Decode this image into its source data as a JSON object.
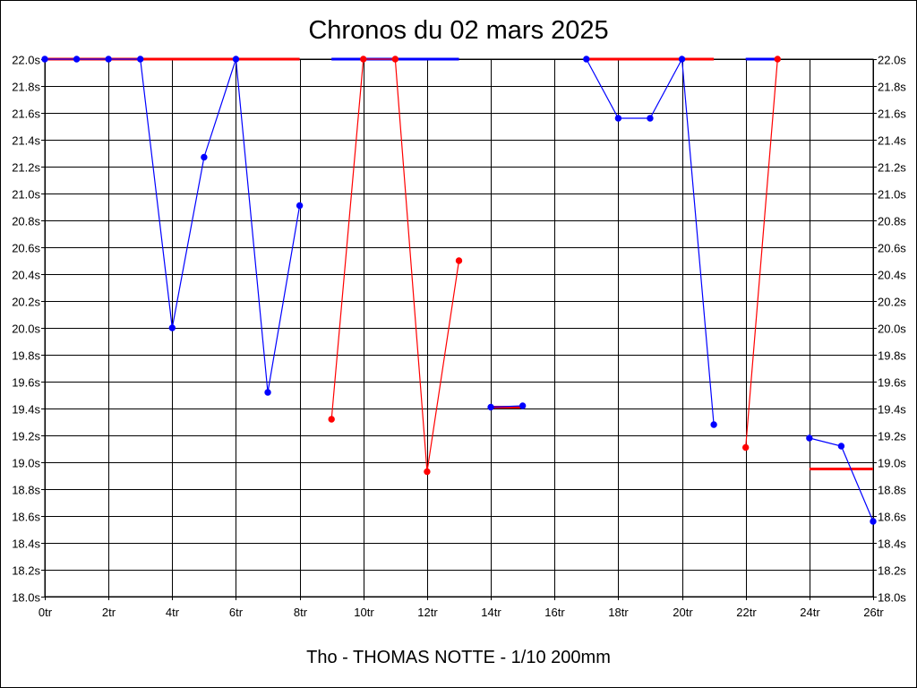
{
  "chart_data": {
    "type": "line",
    "title": "Chronos du 02 mars 2025",
    "footer": "Tho - THOMAS NOTTE - 1/10 200mm",
    "xlim": [
      0,
      26
    ],
    "ylim": [
      18.0,
      22.0
    ],
    "x_ticks": [
      {
        "value": 0,
        "label": "0tr"
      },
      {
        "value": 2,
        "label": "2tr"
      },
      {
        "value": 4,
        "label": "4tr"
      },
      {
        "value": 6,
        "label": "6tr"
      },
      {
        "value": 8,
        "label": "8tr"
      },
      {
        "value": 10,
        "label": "10tr"
      },
      {
        "value": 12,
        "label": "12tr"
      },
      {
        "value": 14,
        "label": "14tr"
      },
      {
        "value": 16,
        "label": "16tr"
      },
      {
        "value": 18,
        "label": "18tr"
      },
      {
        "value": 20,
        "label": "20tr"
      },
      {
        "value": 22,
        "label": "22tr"
      },
      {
        "value": 24,
        "label": "24tr"
      },
      {
        "value": 26,
        "label": "26tr"
      }
    ],
    "y_ticks": [
      {
        "value": 22.0,
        "label": "22.0s"
      },
      {
        "value": 21.8,
        "label": "21.8s"
      },
      {
        "value": 21.6,
        "label": "21.6s"
      },
      {
        "value": 21.4,
        "label": "21.4s"
      },
      {
        "value": 21.2,
        "label": "21.2s"
      },
      {
        "value": 21.0,
        "label": "21.0s"
      },
      {
        "value": 20.8,
        "label": "20.8s"
      },
      {
        "value": 20.6,
        "label": "20.6s"
      },
      {
        "value": 20.4,
        "label": "20.4s"
      },
      {
        "value": 20.2,
        "label": "20.2s"
      },
      {
        "value": 20.0,
        "label": "20.0s"
      },
      {
        "value": 19.8,
        "label": "19.8s"
      },
      {
        "value": 19.6,
        "label": "19.6s"
      },
      {
        "value": 19.4,
        "label": "19.4s"
      },
      {
        "value": 19.2,
        "label": "19.2s"
      },
      {
        "value": 19.0,
        "label": "19.0s"
      },
      {
        "value": 18.8,
        "label": "18.8s"
      },
      {
        "value": 18.6,
        "label": "18.6s"
      },
      {
        "value": 18.4,
        "label": "18.4s"
      },
      {
        "value": 18.2,
        "label": "18.2s"
      },
      {
        "value": 18.0,
        "label": "18.0s"
      }
    ],
    "grid": true,
    "series": [
      {
        "color": "#0000ff",
        "points": [
          [
            0,
            22.0
          ],
          [
            1,
            22.0
          ],
          [
            2,
            22.0
          ],
          [
            3,
            22.0
          ],
          [
            4,
            20.0
          ],
          [
            5,
            21.27
          ],
          [
            6,
            22.0
          ],
          [
            7,
            19.52
          ],
          [
            8,
            20.91
          ]
        ]
      },
      {
        "color": "#ff0000",
        "points": [
          [
            9,
            19.32
          ],
          [
            10,
            22.0
          ],
          [
            11,
            22.0
          ],
          [
            12,
            18.93
          ],
          [
            13,
            20.5
          ]
        ]
      },
      {
        "color": "#0000ff",
        "points": [
          [
            14,
            19.41
          ],
          [
            15,
            19.42
          ]
        ]
      },
      {
        "color": "#0000ff",
        "points": [
          [
            17,
            22.0
          ],
          [
            18,
            21.56
          ],
          [
            19,
            21.56
          ],
          [
            20,
            22.0
          ],
          [
            21,
            19.28
          ]
        ]
      },
      {
        "color": "#ff0000",
        "points": [
          [
            22,
            19.11
          ],
          [
            23,
            22.0
          ]
        ]
      },
      {
        "color": "#0000ff",
        "points": [
          [
            24,
            19.18
          ],
          [
            25,
            19.12
          ],
          [
            26,
            18.56
          ]
        ]
      }
    ],
    "reference_lines": [
      {
        "color": "#ff0000",
        "x": [
          0,
          8
        ],
        "y": 22.0
      },
      {
        "color": "#0000ff",
        "x": [
          9,
          13
        ],
        "y": 22.0
      },
      {
        "color": "#ff0000",
        "x": [
          14,
          15
        ],
        "y": 19.41
      },
      {
        "color": "#ff0000",
        "x": [
          17,
          21
        ],
        "y": 22.0
      },
      {
        "color": "#0000ff",
        "x": [
          22,
          23
        ],
        "y": 22.0
      },
      {
        "color": "#ff0000",
        "x": [
          24,
          26
        ],
        "y": 18.95
      }
    ],
    "point_marker_color_override": [
      {
        "series": 2,
        "index": 0,
        "color": "#0000ff"
      }
    ]
  }
}
